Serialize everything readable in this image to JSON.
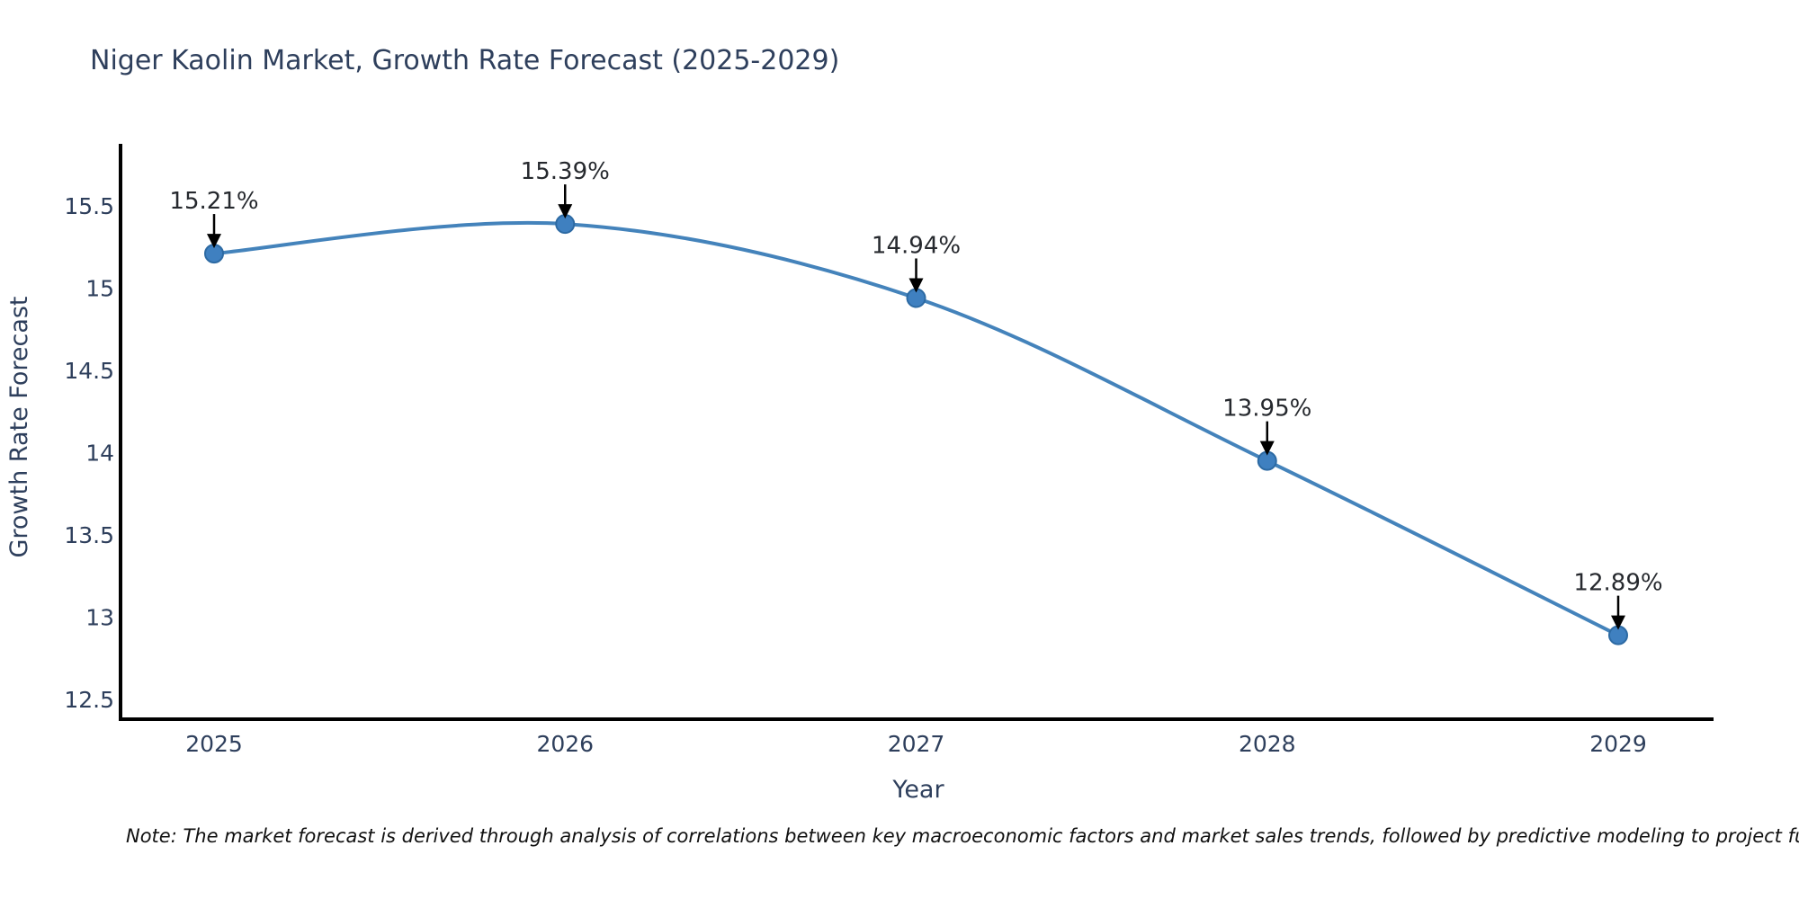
{
  "chart": {
    "title": "Niger Kaolin Market, Growth Rate Forecast (2025-2029)",
    "x_axis_label": "Year",
    "y_axis_label": "Growth Rate Forecast"
  },
  "note": "Note: The market forecast is derived through analysis of correlations between key macroeconomic factors and market sales trends, followed by predictive modeling to project future sales.",
  "colors": {
    "line": "#4483bb",
    "marker_fill": "#3f80c0",
    "marker_stroke": "#2d6aa3",
    "spine": "#000000",
    "tick_text": "#2e3f5c",
    "annotation_text": "#26292e",
    "arrow": "#000000",
    "background": "#ffffff"
  },
  "chart_data": {
    "type": "line",
    "title": "Niger Kaolin Market, Growth Rate Forecast (2025-2029)",
    "xlabel": "Year",
    "ylabel": "Growth Rate Forecast",
    "x": [
      2025,
      2026,
      2027,
      2028,
      2029
    ],
    "x_tick_labels": [
      "2025",
      "2026",
      "2027",
      "2028",
      "2029"
    ],
    "series": [
      {
        "name": "Growth Rate Forecast",
        "values": [
          15.21,
          15.39,
          14.94,
          13.95,
          12.89
        ],
        "point_labels": [
          "15.21%",
          "15.39%",
          "14.94%",
          "13.95%",
          "12.89%"
        ]
      }
    ],
    "y_ticks": [
      12.5,
      13,
      13.5,
      14,
      14.5,
      15,
      15.5
    ],
    "ylim": [
      12.38,
      15.74
    ],
    "grid": false,
    "legend_position": "none",
    "line_smoothing": "spline",
    "annotations": "value labels with down arrows above each point"
  }
}
